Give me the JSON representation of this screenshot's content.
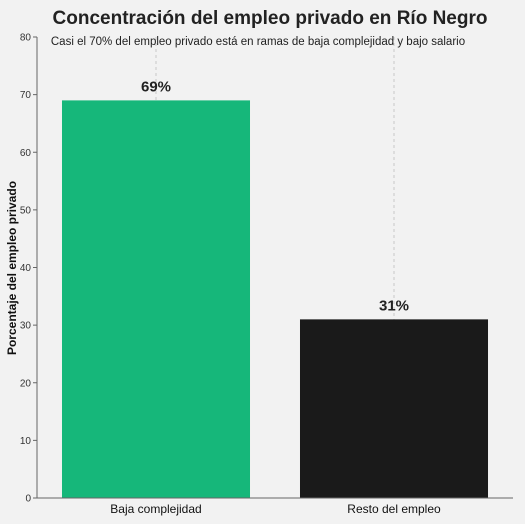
{
  "chart_data": {
    "type": "bar",
    "title": "Concentración del empleo privado en Río Negro",
    "subtitle": "Casi el 70% del empleo privado está en ramas de baja complejidad y bajo salario",
    "ylabel": "Porcentaje del empleo privado",
    "xlabel": "",
    "categories": [
      "Baja complejidad",
      "Resto del empleo"
    ],
    "values": [
      69,
      31
    ],
    "data_labels": [
      "69%",
      "31%"
    ],
    "bar_colors": [
      "#16b77a",
      "#1a1a1a"
    ],
    "ylim": [
      0,
      80
    ],
    "yticks": [
      0,
      10,
      20,
      30,
      40,
      50,
      60,
      70,
      80
    ],
    "grid": "vertical-dashed",
    "legend": "none"
  }
}
